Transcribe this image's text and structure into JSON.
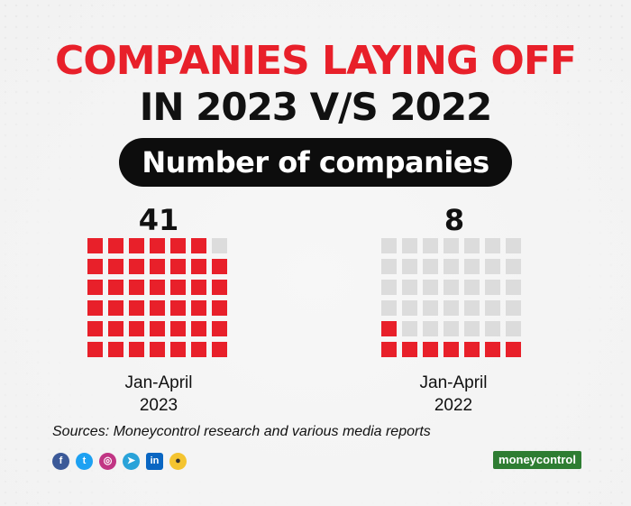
{
  "header": {
    "title_line1": "COMPANIES LAYING OFF",
    "title_line2": "IN 2023 V/S 2022",
    "subtitle": "Number of companies"
  },
  "chart_data": {
    "type": "waffle",
    "total_cells": 42,
    "grid": {
      "rows": 6,
      "cols": 7
    },
    "series": [
      {
        "label": "Jan-April\n2023",
        "label_line1": "Jan-April",
        "label_line2": "2023",
        "value": 41,
        "value_label": "41"
      },
      {
        "label": "Jan-April\n2022",
        "label_line1": "Jan-April",
        "label_line2": "2022",
        "value": 8,
        "value_label": "8"
      }
    ],
    "colors": {
      "filled": "#e8202a",
      "empty": "#dcdcdc"
    }
  },
  "footer": {
    "sources": "Sources: Moneycontrol research and various media reports",
    "brand": "moneycontrol",
    "social_icons": [
      "facebook-icon",
      "twitter-icon",
      "instagram-icon",
      "telegram-icon",
      "linkedin-icon",
      "koo-icon"
    ]
  }
}
